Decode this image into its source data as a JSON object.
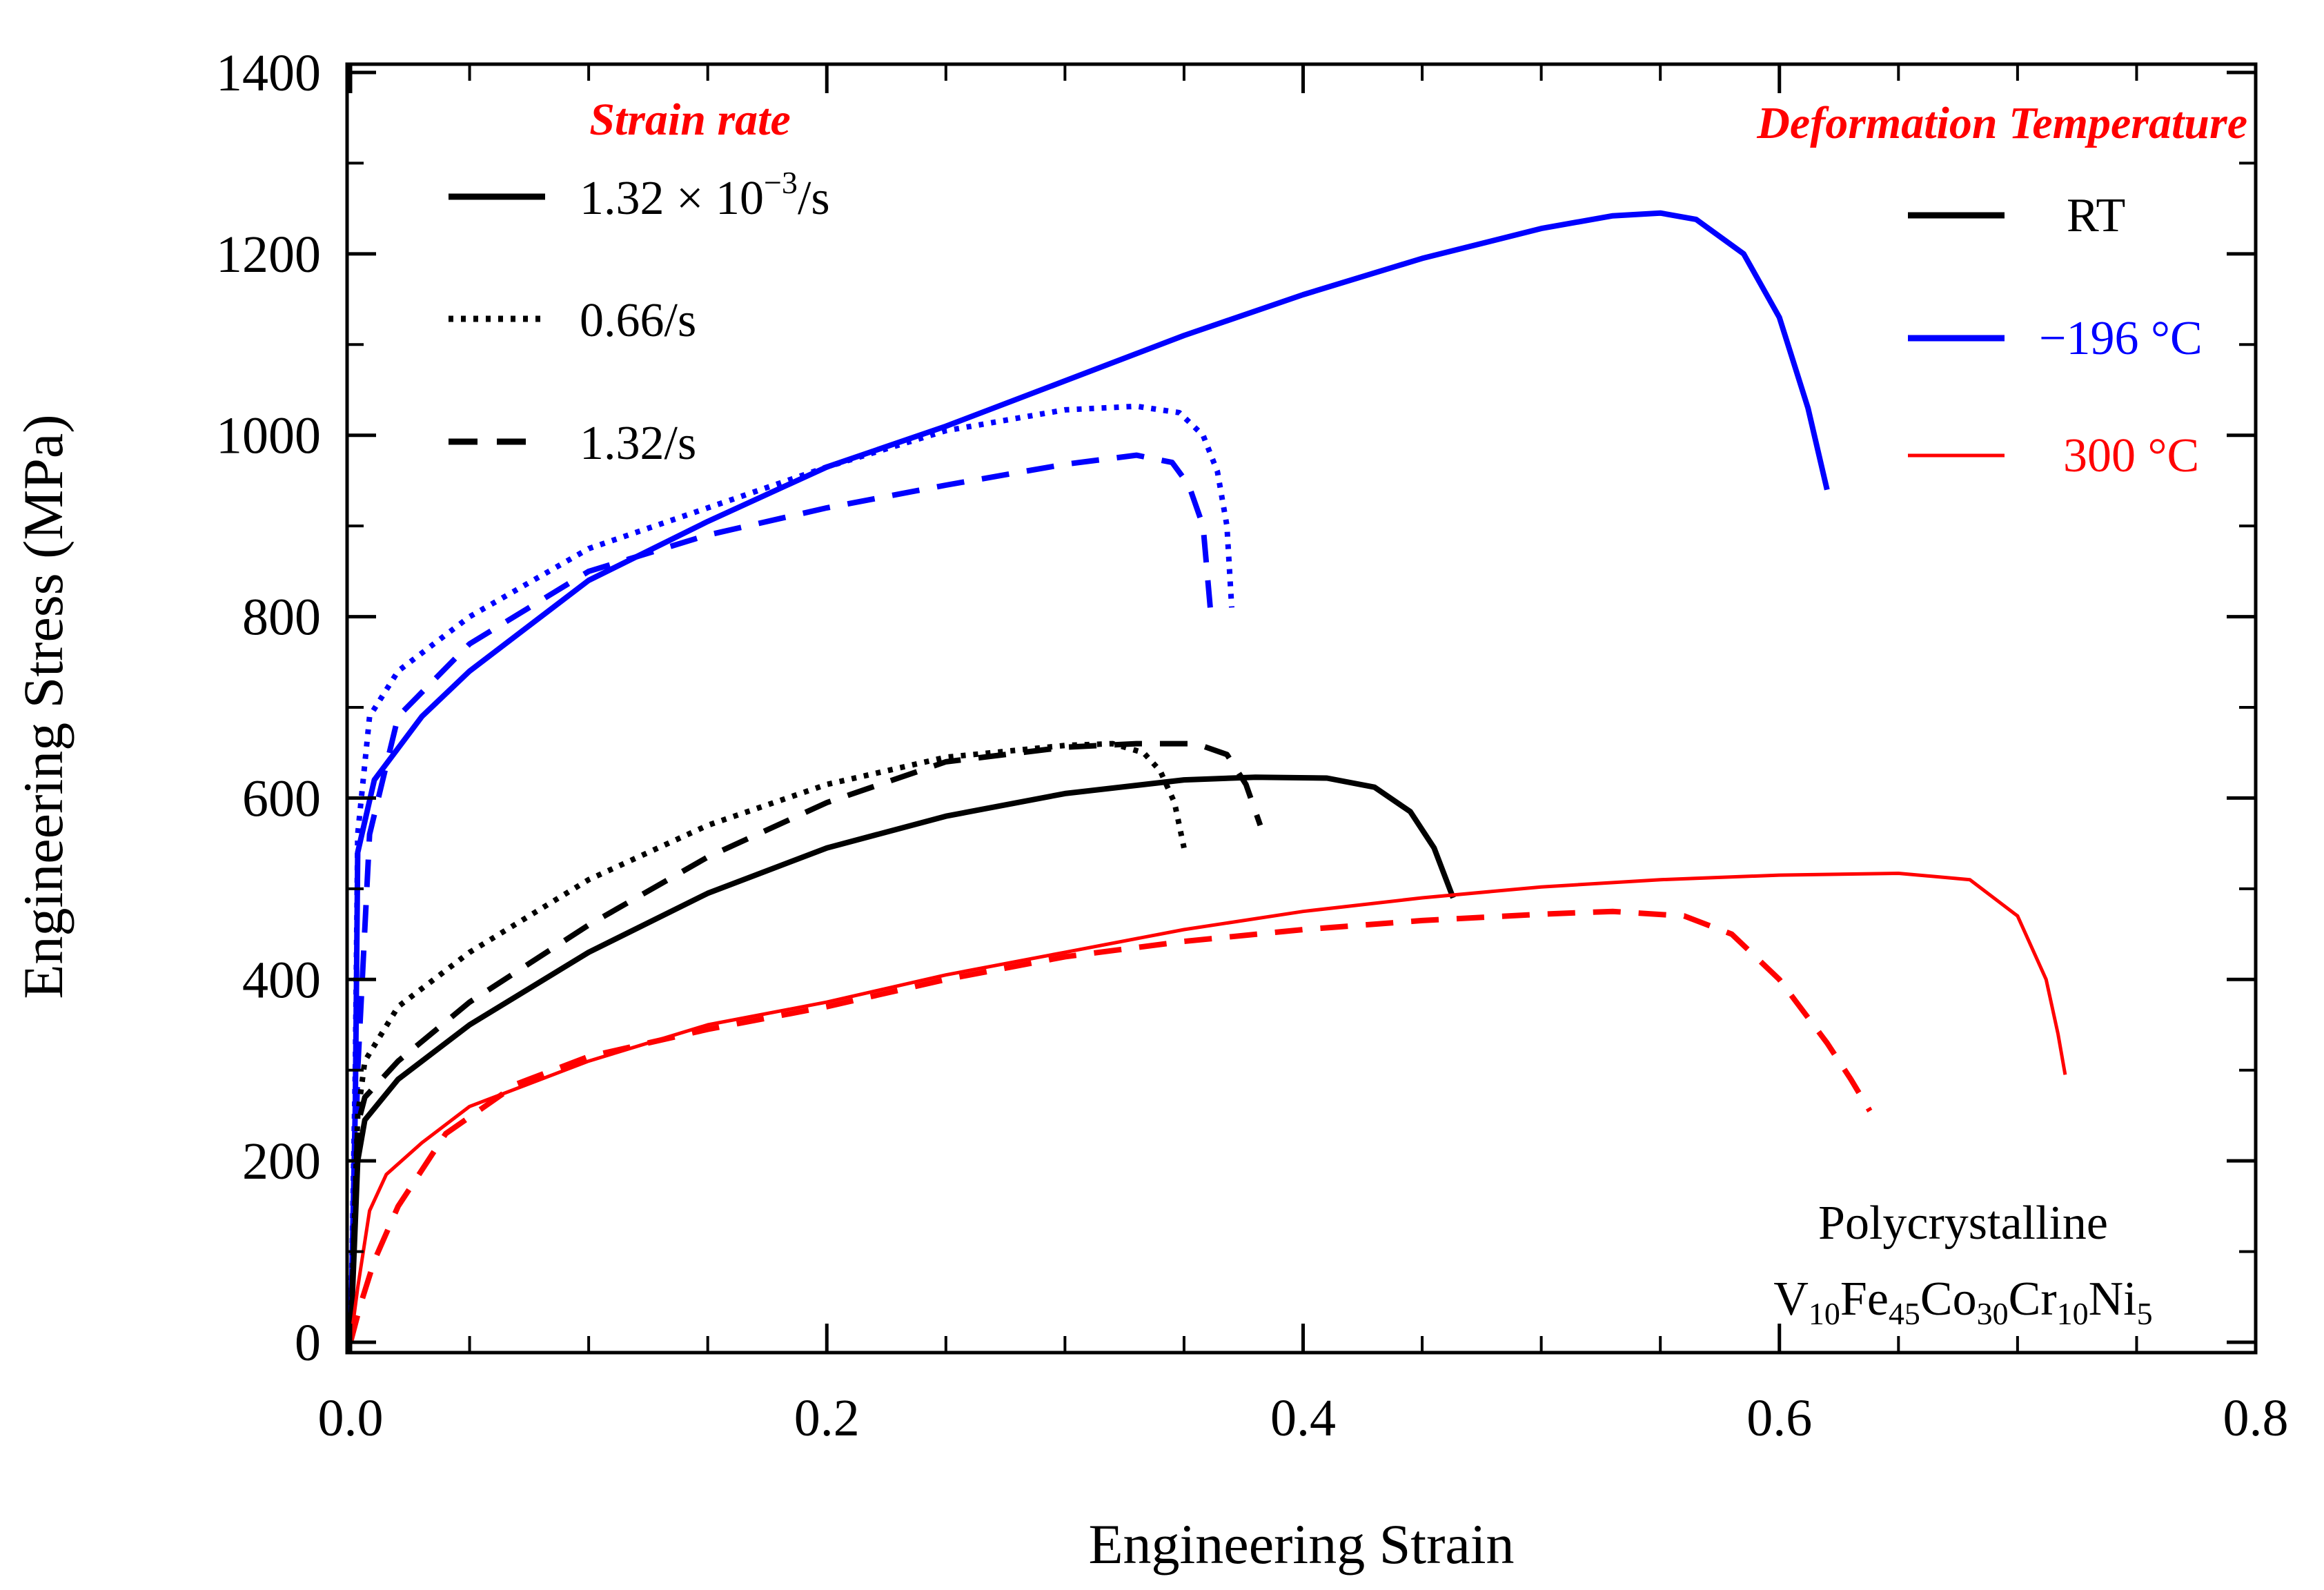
{
  "chart_data": {
    "type": "line",
    "xlabel": "Engineering Strain",
    "ylabel": "Engineering Stress (MPa)",
    "xlim": [
      0.0,
      0.8
    ],
    "ylim": [
      0,
      1400
    ],
    "xticks": [
      0.0,
      0.2,
      0.4,
      0.6,
      0.8
    ],
    "xtick_labels": [
      "0.0",
      "0.2",
      "0.4",
      "0.6",
      "0.8"
    ],
    "yticks": [
      0,
      200,
      400,
      600,
      800,
      1000,
      1200,
      1400
    ],
    "ytick_labels": [
      "0",
      "200",
      "400",
      "600",
      "800",
      "1000",
      "1200",
      "1400"
    ],
    "grid": false,
    "legend_strain_rate": {
      "title": "Strain rate",
      "title_color": "#ff0000",
      "position": "top-left",
      "entries": [
        {
          "style": "solid",
          "label_main": "1.32 × 10",
          "label_sup": "−3",
          "label_tail": "/s"
        },
        {
          "style": "dotted",
          "label_main": "0.66/s"
        },
        {
          "style": "dashed",
          "label_main": "1.32/s"
        }
      ]
    },
    "legend_temperature": {
      "title": "Deformation Temperature",
      "title_color": "#ff0000",
      "position": "top-right",
      "entries": [
        {
          "label": "RT",
          "color": "#000000"
        },
        {
          "label": "−196 °C",
          "color": "#0000ff"
        },
        {
          "label": "300 °C",
          "color": "#ff0000"
        }
      ]
    },
    "annotation": {
      "line1": "Polycrystalline",
      "line2": [
        {
          "t": "V"
        },
        {
          "t": "10",
          "sub": true
        },
        {
          "t": "Fe"
        },
        {
          "t": "45",
          "sub": true
        },
        {
          "t": "Co"
        },
        {
          "t": "30",
          "sub": true
        },
        {
          "t": "Cr"
        },
        {
          "t": "10",
          "sub": true
        },
        {
          "t": "Ni"
        },
        {
          "t": "5",
          "sub": true
        }
      ],
      "position": "bottom-right"
    },
    "series": [
      {
        "name": "-196 °C, 1.32×10⁻³/s",
        "color": "#0000ff",
        "style": "solid",
        "points": [
          [
            0,
            0
          ],
          [
            0.002,
            260
          ],
          [
            0.003,
            540
          ],
          [
            0.01,
            620
          ],
          [
            0.03,
            690
          ],
          [
            0.05,
            740
          ],
          [
            0.1,
            840
          ],
          [
            0.15,
            905
          ],
          [
            0.2,
            965
          ],
          [
            0.25,
            1010
          ],
          [
            0.3,
            1060
          ],
          [
            0.35,
            1110
          ],
          [
            0.4,
            1155
          ],
          [
            0.45,
            1195
          ],
          [
            0.5,
            1228
          ],
          [
            0.53,
            1242
          ],
          [
            0.55,
            1245
          ],
          [
            0.565,
            1238
          ],
          [
            0.585,
            1200
          ],
          [
            0.6,
            1130
          ],
          [
            0.612,
            1030
          ],
          [
            0.62,
            940
          ]
        ]
      },
      {
        "name": "-196 °C, 0.66/s",
        "color": "#0000ff",
        "style": "dotted",
        "points": [
          [
            0,
            0
          ],
          [
            0.002,
            300
          ],
          [
            0.003,
            560
          ],
          [
            0.008,
            690
          ],
          [
            0.02,
            740
          ],
          [
            0.05,
            800
          ],
          [
            0.1,
            875
          ],
          [
            0.15,
            920
          ],
          [
            0.2,
            965
          ],
          [
            0.25,
            1005
          ],
          [
            0.3,
            1028
          ],
          [
            0.33,
            1032
          ],
          [
            0.348,
            1025
          ],
          [
            0.358,
            1000
          ],
          [
            0.364,
            960
          ],
          [
            0.368,
            900
          ],
          [
            0.37,
            810
          ]
        ]
      },
      {
        "name": "-196 °C, 1.32/s",
        "color": "#0000ff",
        "style": "dashed",
        "points": [
          [
            0,
            0
          ],
          [
            0.003,
            300
          ],
          [
            0.008,
            560
          ],
          [
            0.02,
            690
          ],
          [
            0.05,
            770
          ],
          [
            0.1,
            850
          ],
          [
            0.15,
            890
          ],
          [
            0.2,
            920
          ],
          [
            0.25,
            945
          ],
          [
            0.3,
            968
          ],
          [
            0.33,
            978
          ],
          [
            0.345,
            970
          ],
          [
            0.352,
            945
          ],
          [
            0.358,
            900
          ],
          [
            0.361,
            810
          ]
        ]
      },
      {
        "name": "RT, 1.32×10⁻³/s",
        "color": "#000000",
        "style": "solid",
        "points": [
          [
            0,
            0
          ],
          [
            0.003,
            200
          ],
          [
            0.006,
            245
          ],
          [
            0.02,
            290
          ],
          [
            0.05,
            350
          ],
          [
            0.1,
            430
          ],
          [
            0.15,
            495
          ],
          [
            0.2,
            545
          ],
          [
            0.25,
            580
          ],
          [
            0.3,
            605
          ],
          [
            0.35,
            620
          ],
          [
            0.38,
            623
          ],
          [
            0.41,
            622
          ],
          [
            0.43,
            612
          ],
          [
            0.445,
            585
          ],
          [
            0.455,
            545
          ],
          [
            0.463,
            490
          ]
        ]
      },
      {
        "name": "RT, 0.66/s",
        "color": "#000000",
        "style": "dotted",
        "points": [
          [
            0,
            0
          ],
          [
            0.003,
            250
          ],
          [
            0.006,
            310
          ],
          [
            0.02,
            370
          ],
          [
            0.05,
            430
          ],
          [
            0.1,
            510
          ],
          [
            0.15,
            570
          ],
          [
            0.2,
            615
          ],
          [
            0.25,
            645
          ],
          [
            0.3,
            658
          ],
          [
            0.32,
            660
          ],
          [
            0.333,
            650
          ],
          [
            0.34,
            630
          ],
          [
            0.346,
            595
          ],
          [
            0.35,
            545
          ]
        ]
      },
      {
        "name": "RT, 1.32/s",
        "color": "#000000",
        "style": "dashed",
        "points": [
          [
            0,
            0
          ],
          [
            0.003,
            240
          ],
          [
            0.006,
            270
          ],
          [
            0.02,
            310
          ],
          [
            0.05,
            375
          ],
          [
            0.1,
            460
          ],
          [
            0.15,
            535
          ],
          [
            0.2,
            595
          ],
          [
            0.25,
            640
          ],
          [
            0.3,
            656
          ],
          [
            0.33,
            660
          ],
          [
            0.355,
            660
          ],
          [
            0.368,
            648
          ],
          [
            0.376,
            615
          ],
          [
            0.382,
            570
          ]
        ]
      },
      {
        "name": "300 °C, 1.32×10⁻³/s",
        "color": "#ff0000",
        "style": "solid",
        "points": [
          [
            0,
            0
          ],
          [
            0.003,
            60
          ],
          [
            0.008,
            145
          ],
          [
            0.015,
            185
          ],
          [
            0.03,
            220
          ],
          [
            0.05,
            260
          ],
          [
            0.1,
            310
          ],
          [
            0.15,
            350
          ],
          [
            0.2,
            375
          ],
          [
            0.25,
            405
          ],
          [
            0.3,
            430
          ],
          [
            0.35,
            455
          ],
          [
            0.4,
            475
          ],
          [
            0.45,
            490
          ],
          [
            0.5,
            502
          ],
          [
            0.55,
            510
          ],
          [
            0.6,
            515
          ],
          [
            0.65,
            517
          ],
          [
            0.68,
            510
          ],
          [
            0.7,
            470
          ],
          [
            0.712,
            400
          ],
          [
            0.717,
            340
          ],
          [
            0.72,
            295
          ]
        ]
      },
      {
        "name": "300 °C, 1.32/s",
        "color": "#ff0000",
        "style": "dashed",
        "points": [
          [
            0,
            0
          ],
          [
            0.004,
            40
          ],
          [
            0.01,
            90
          ],
          [
            0.02,
            150
          ],
          [
            0.04,
            230
          ],
          [
            0.07,
            285
          ],
          [
            0.1,
            315
          ],
          [
            0.15,
            345
          ],
          [
            0.2,
            370
          ],
          [
            0.25,
            400
          ],
          [
            0.3,
            425
          ],
          [
            0.35,
            442
          ],
          [
            0.4,
            455
          ],
          [
            0.45,
            465
          ],
          [
            0.5,
            472
          ],
          [
            0.53,
            475
          ],
          [
            0.56,
            470
          ],
          [
            0.58,
            450
          ],
          [
            0.6,
            400
          ],
          [
            0.62,
            330
          ],
          [
            0.63,
            290
          ],
          [
            0.638,
            255
          ]
        ]
      }
    ]
  }
}
